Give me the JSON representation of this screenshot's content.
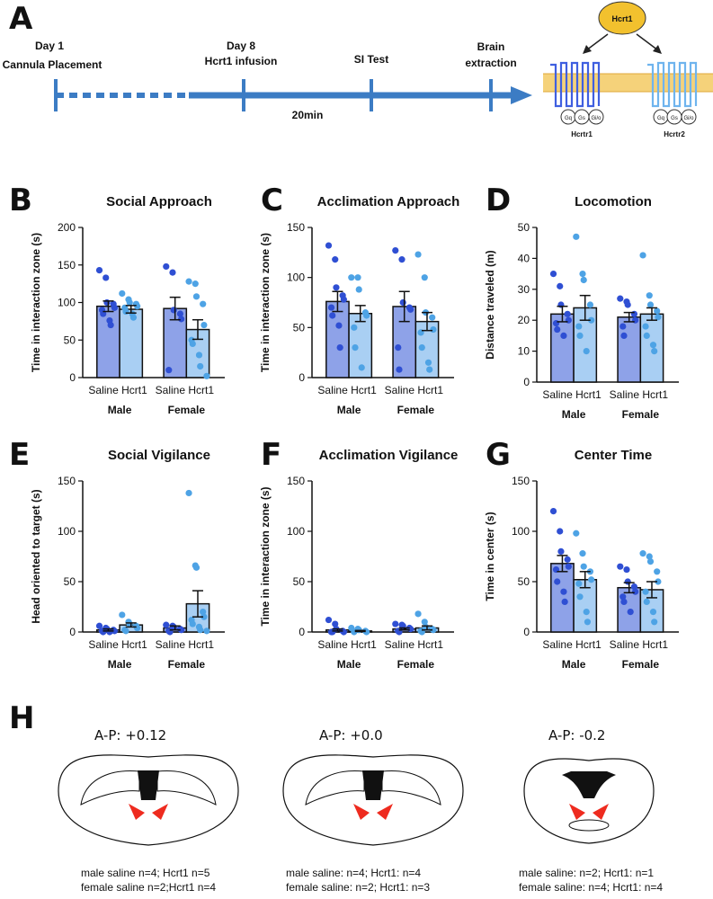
{
  "panel_labels": {
    "a": "A",
    "b": "B",
    "c": "C",
    "d": "D",
    "e": "E",
    "f": "F",
    "g": "G",
    "h": "H"
  },
  "timeline": {
    "day1": "Day 1",
    "cannula": "Cannula Placement",
    "day8": "Day 8",
    "infusion": "Hcrt1 infusion",
    "si_test": "SI Test",
    "brain": "Brain",
    "extraction": "extraction",
    "interval": "20min"
  },
  "receptor": {
    "ligand": "Hcrt1",
    "r1": "Hcrtr1",
    "r2": "Hcrtr2",
    "g1": [
      "Gq",
      "Gs",
      "Gi/o"
    ],
    "g2": [
      "Gq",
      "Gs",
      "Gi/o"
    ],
    "colors": {
      "ligand": "#F2C12E",
      "membrane": "#F5D27A",
      "r1": "#3F5FE0",
      "r2": "#6FB4EE"
    }
  },
  "colors": {
    "saline_bar": "#8EA2E8",
    "hcrt_bar": "#A9CFF3",
    "saline_dot": "#2F4FD3",
    "hcrt_dot": "#4EA3E5"
  },
  "chart_data": [
    {
      "id": "B",
      "type": "bar",
      "title": "Social Approach",
      "ylabel": "Time in interaction zone (s)",
      "ylim": [
        0,
        200
      ],
      "yticks": [
        0,
        50,
        100,
        150,
        200
      ],
      "groups": [
        "Male",
        "Female"
      ],
      "conditions": [
        "Saline",
        "Hcrt1"
      ],
      "series": [
        {
          "name": "Saline",
          "means": [
            95,
            92
          ],
          "sem": [
            7,
            15
          ]
        },
        {
          "name": "Hcrt1",
          "means": [
            91,
            64
          ],
          "sem": [
            5,
            13
          ]
        }
      ],
      "points": [
        [
          [
            143,
            133,
            100,
            98,
            93,
            90,
            85,
            76,
            70
          ],
          [
            112,
            104,
            100,
            98,
            95,
            93,
            88,
            85,
            80
          ]
        ],
        [
          [
            148,
            140,
            90,
            85,
            78,
            10
          ],
          [
            128,
            125,
            108,
            98,
            70,
            50,
            45,
            30,
            15,
            2
          ]
        ]
      ]
    },
    {
      "id": "C",
      "type": "bar",
      "title": "Acclimation Approach",
      "ylabel": "Time in interaction zone (s)",
      "ylim": [
        0,
        150
      ],
      "yticks": [
        0,
        50,
        100,
        150
      ],
      "groups": [
        "Male",
        "Female"
      ],
      "conditions": [
        "Saline",
        "Hcrt1"
      ],
      "series": [
        {
          "name": "Saline",
          "means": [
            76,
            71
          ],
          "sem": [
            10,
            15
          ]
        },
        {
          "name": "Hcrt1",
          "means": [
            64,
            56
          ],
          "sem": [
            8,
            9
          ]
        }
      ],
      "points": [
        [
          [
            132,
            118,
            90,
            82,
            78,
            70,
            62,
            52,
            30
          ],
          [
            100,
            100,
            88,
            65,
            62,
            50,
            30,
            10
          ]
        ],
        [
          [
            127,
            118,
            75,
            70,
            68,
            30,
            8
          ],
          [
            123,
            100,
            65,
            60,
            48,
            45,
            30,
            15,
            8
          ]
        ]
      ]
    },
    {
      "id": "D",
      "type": "bar",
      "title": "Locomotion",
      "ylabel": "Distance traveled (m)",
      "ylim": [
        0,
        50
      ],
      "yticks": [
        0,
        10,
        20,
        30,
        40,
        50
      ],
      "groups": [
        "Male",
        "Female"
      ],
      "conditions": [
        "Saline",
        "Hcrt1"
      ],
      "series": [
        {
          "name": "Saline",
          "means": [
            22,
            21
          ],
          "sem": [
            2.5,
            1.5
          ]
        },
        {
          "name": "Hcrt1",
          "means": [
            24,
            22
          ],
          "sem": [
            4,
            2
          ]
        }
      ],
      "points": [
        [
          [
            35,
            31,
            25,
            22,
            20,
            19,
            17,
            15
          ],
          [
            47,
            35,
            33,
            25,
            20,
            18,
            15,
            10
          ]
        ],
        [
          [
            27,
            26,
            25,
            22,
            20,
            18,
            15
          ],
          [
            41,
            28,
            25,
            23,
            21,
            18,
            15,
            12,
            10
          ]
        ]
      ]
    },
    {
      "id": "E",
      "type": "bar",
      "title": "Social Vigilance",
      "ylabel": "Head oriented to target (s)",
      "ylim": [
        0,
        150
      ],
      "yticks": [
        0,
        50,
        100,
        150
      ],
      "groups": [
        "Male",
        "Female"
      ],
      "conditions": [
        "Saline",
        "Hcrt1"
      ],
      "series": [
        {
          "name": "Saline",
          "means": [
            2,
            4
          ],
          "sem": [
            1,
            2
          ]
        },
        {
          "name": "Hcrt1",
          "means": [
            7,
            28
          ],
          "sem": [
            2,
            13
          ]
        }
      ],
      "points": [
        [
          [
            6,
            4,
            3,
            2,
            1,
            1,
            0,
            0
          ],
          [
            17,
            10,
            8,
            6,
            4,
            2,
            1
          ]
        ],
        [
          [
            7,
            6,
            5,
            3,
            2,
            1,
            0
          ],
          [
            138,
            66,
            64,
            20,
            15,
            12,
            8,
            5,
            2,
            1
          ]
        ]
      ]
    },
    {
      "id": "F",
      "type": "bar",
      "title": "Acclimation Vigilance",
      "ylabel": "Time in interaction zone (s)",
      "ylim": [
        0,
        150
      ],
      "yticks": [
        0,
        50,
        100,
        150
      ],
      "groups": [
        "Male",
        "Female"
      ],
      "conditions": [
        "Saline",
        "Hcrt1"
      ],
      "series": [
        {
          "name": "Saline",
          "means": [
            2,
            3
          ],
          "sem": [
            1,
            1
          ]
        },
        {
          "name": "Hcrt1",
          "means": [
            1,
            4
          ],
          "sem": [
            0.5,
            2
          ]
        }
      ],
      "points": [
        [
          [
            12,
            8,
            3,
            1,
            0,
            0,
            0
          ],
          [
            4,
            3,
            2,
            1,
            0,
            0
          ]
        ],
        [
          [
            8,
            7,
            6,
            4,
            3,
            1,
            0
          ],
          [
            18,
            10,
            5,
            3,
            2,
            1,
            0
          ]
        ]
      ]
    },
    {
      "id": "G",
      "type": "bar",
      "title": "Center Time",
      "ylabel": "Time in center (s)",
      "ylim": [
        0,
        150
      ],
      "yticks": [
        0,
        50,
        100,
        150
      ],
      "groups": [
        "Male",
        "Female"
      ],
      "conditions": [
        "Saline",
        "Hcrt1"
      ],
      "series": [
        {
          "name": "Saline",
          "means": [
            68,
            44
          ],
          "sem": [
            8,
            5
          ]
        },
        {
          "name": "Hcrt1",
          "means": [
            52,
            42
          ],
          "sem": [
            8,
            8
          ]
        }
      ],
      "points": [
        [
          [
            120,
            100,
            80,
            72,
            65,
            62,
            50,
            40,
            30
          ],
          [
            98,
            78,
            65,
            60,
            52,
            48,
            35,
            20,
            10
          ]
        ],
        [
          [
            65,
            62,
            50,
            45,
            40,
            35,
            30,
            20
          ],
          [
            78,
            75,
            70,
            60,
            50,
            40,
            30,
            20,
            10
          ]
        ]
      ]
    }
  ],
  "sections": [
    {
      "ap": "A-P: +0.12",
      "line1": "male saline n=4; Hcrt1 n=5",
      "line2": "female saline n=2;Hcrt1 n=4"
    },
    {
      "ap": "A-P: +0.0",
      "line1": "male saline: n=4; Hcrt1: n=4",
      "line2": "female saline: n=2; Hcrt1: n=3"
    },
    {
      "ap": "A-P: -0.2",
      "line1": "male saline: n=2; Hcrt1: n=1",
      "line2": "female saline: n=4; Hcrt1: n=4"
    }
  ]
}
